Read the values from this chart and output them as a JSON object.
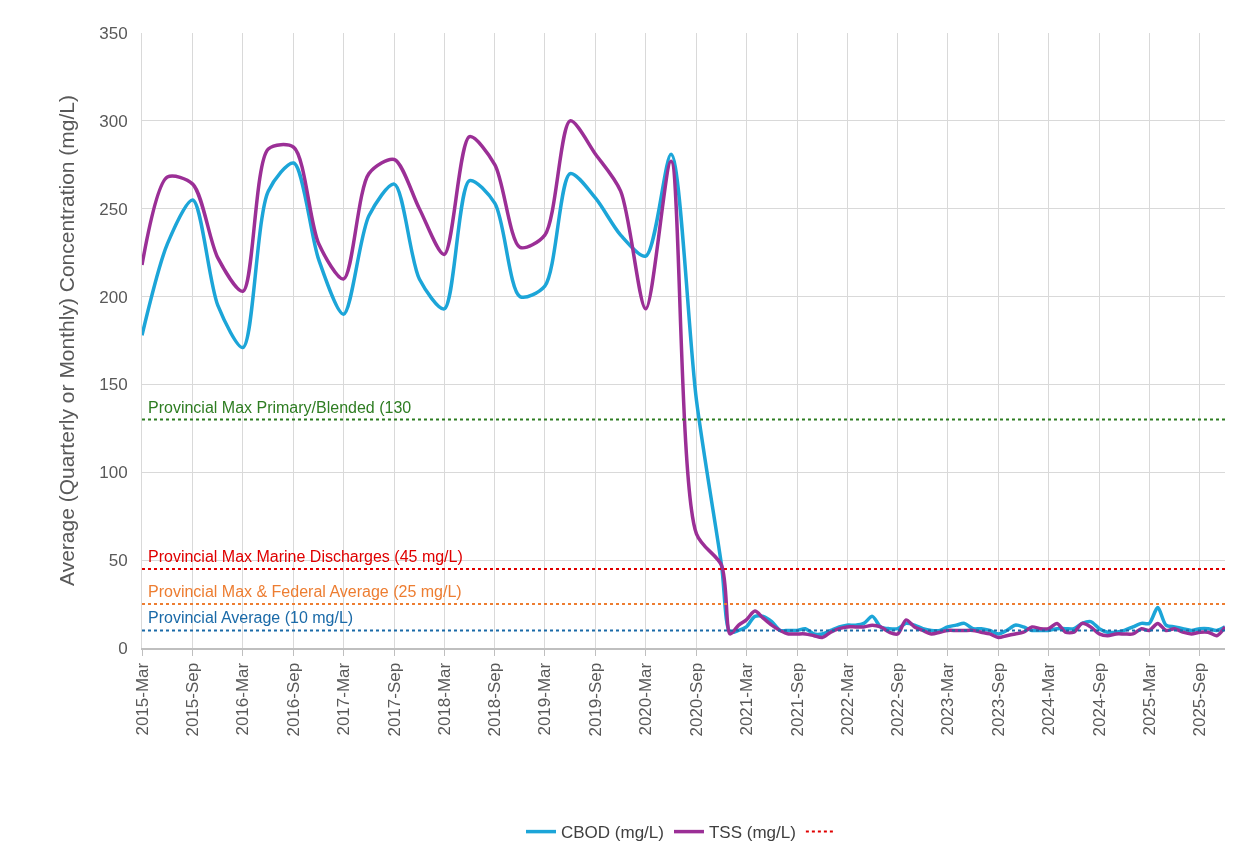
{
  "chart_data": {
    "type": "line",
    "ylabel": "Average (Quarterly or Monthly) Concentration (mg/L)",
    "xlim": [
      "2015-03",
      "2025-12"
    ],
    "xticks": [
      {
        "value": "2015-03",
        "label": "2015-Mar"
      },
      {
        "value": "2015-09",
        "label": "2015-Sep"
      },
      {
        "value": "2016-03",
        "label": "2016-Mar"
      },
      {
        "value": "2016-09",
        "label": "2016-Sep"
      },
      {
        "value": "2017-03",
        "label": "2017-Mar"
      },
      {
        "value": "2017-09",
        "label": "2017-Sep"
      },
      {
        "value": "2018-03",
        "label": "2018-Mar"
      },
      {
        "value": "2018-09",
        "label": "2018-Sep"
      },
      {
        "value": "2019-03",
        "label": "2019-Mar"
      },
      {
        "value": "2019-09",
        "label": "2019-Sep"
      },
      {
        "value": "2020-03",
        "label": "2020-Mar"
      },
      {
        "value": "2020-09",
        "label": "2020-Sep"
      },
      {
        "value": "2021-03",
        "label": "2021-Mar"
      },
      {
        "value": "2021-09",
        "label": "2021-Sep"
      },
      {
        "value": "2022-03",
        "label": "2022-Mar"
      },
      {
        "value": "2022-09",
        "label": "2022-Sep"
      },
      {
        "value": "2023-03",
        "label": "2023-Mar"
      },
      {
        "value": "2023-09",
        "label": "2023-Sep"
      },
      {
        "value": "2024-03",
        "label": "2024-Mar"
      },
      {
        "value": "2024-09",
        "label": "2024-Sep"
      },
      {
        "value": "2025-03",
        "label": "2025-Mar"
      },
      {
        "value": "2025-09",
        "label": "2025-Sep"
      }
    ],
    "ylim": [
      0,
      350
    ],
    "yticks": [
      0,
      50,
      100,
      150,
      200,
      250,
      300,
      350
    ],
    "grid": true,
    "legend": "bottom",
    "marker": "none",
    "line_style": "solid",
    "x": [
      "2015-03",
      "2015-06",
      "2015-09",
      "2015-12",
      "2016-03",
      "2016-06",
      "2016-09",
      "2016-12",
      "2017-03",
      "2017-06",
      "2017-09",
      "2017-12",
      "2018-03",
      "2018-06",
      "2018-09",
      "2018-12",
      "2019-03",
      "2019-06",
      "2019-09",
      "2019-12",
      "2020-03",
      "2020-06",
      "2020-09",
      "2020-12",
      "2021-01",
      "2021-02",
      "2021-03",
      "2021-04",
      "2021-05",
      "2021-06",
      "2021-07",
      "2021-08",
      "2021-09",
      "2021-10",
      "2021-11",
      "2021-12",
      "2022-01",
      "2022-02",
      "2022-03",
      "2022-04",
      "2022-05",
      "2022-06",
      "2022-07",
      "2022-08",
      "2022-09",
      "2022-10",
      "2022-11",
      "2022-12",
      "2023-01",
      "2023-02",
      "2023-03",
      "2023-04",
      "2023-05",
      "2023-06",
      "2023-07",
      "2023-08",
      "2023-09",
      "2023-10",
      "2023-11",
      "2023-12",
      "2024-01",
      "2024-02",
      "2024-03",
      "2024-04",
      "2024-05",
      "2024-06",
      "2024-07",
      "2024-08",
      "2024-09",
      "2024-10",
      "2024-11",
      "2024-12",
      "2025-01",
      "2025-02",
      "2025-03",
      "2025-04",
      "2025-05",
      "2025-06",
      "2025-07",
      "2025-08",
      "2025-09",
      "2025-10",
      "2025-11",
      "2025-12"
    ],
    "series": [
      {
        "name": "CBOD (mg/L)",
        "color": "#1ca5d8",
        "values": [
          178,
          230,
          255,
          195,
          171,
          260,
          276,
          221,
          190,
          246,
          264,
          210,
          193,
          266,
          253,
          200,
          206,
          270,
          256,
          235,
          223,
          281,
          141,
          47,
          9,
          10,
          12,
          18,
          18,
          15,
          10,
          10,
          10,
          11,
          8,
          8,
          10,
          12,
          13,
          13,
          14,
          18,
          12,
          11,
          11,
          14,
          13,
          11,
          10,
          10,
          12,
          13,
          14,
          11,
          11,
          10,
          8,
          10,
          13,
          12,
          10,
          10,
          10,
          11,
          11,
          11,
          14,
          15,
          11,
          9,
          9,
          10,
          12,
          14,
          14,
          23,
          13,
          12,
          11,
          10,
          11,
          11,
          10,
          12
        ]
      },
      {
        "name": "TSS (mg/L)",
        "color": "#9b2f96",
        "values": [
          218,
          268,
          264,
          222,
          203,
          284,
          285,
          230,
          210,
          270,
          278,
          250,
          224,
          291,
          275,
          228,
          235,
          300,
          281,
          260,
          193,
          277,
          65,
          47,
          8,
          13,
          16,
          21,
          17,
          13,
          10,
          8,
          8,
          8,
          7,
          6,
          9,
          11,
          12,
          12,
          12,
          13,
          12,
          9,
          8,
          16,
          12,
          10,
          8,
          9,
          10,
          10,
          10,
          10,
          9,
          8,
          6,
          7,
          8,
          9,
          12,
          11,
          11,
          14,
          9,
          9,
          14,
          12,
          8,
          7,
          8,
          8,
          8,
          11,
          10,
          14,
          10,
          11,
          9,
          8,
          9,
          9,
          7,
          12
        ]
      }
    ],
    "ref_lines": [
      {
        "axis": "y",
        "value": 45,
        "label": "Provincial Max Marine Discharges (45 mg/L)",
        "color": "#e00000",
        "line_style": "dotted"
      },
      {
        "axis": "y",
        "value": 130,
        "label": "Provincial Max Primary/Blended (130",
        "color": "#2e7d22",
        "line_style": "dotted"
      },
      {
        "axis": "y",
        "value": 25,
        "label": "Provincial Max & Federal Average (25 mg/L)",
        "color": "#ed7d31",
        "line_style": "dotted"
      },
      {
        "axis": "y",
        "value": 10,
        "label": "Provincial Average (10 mg/L)",
        "color": "#1a6aa8",
        "line_style": "dotted"
      }
    ]
  }
}
